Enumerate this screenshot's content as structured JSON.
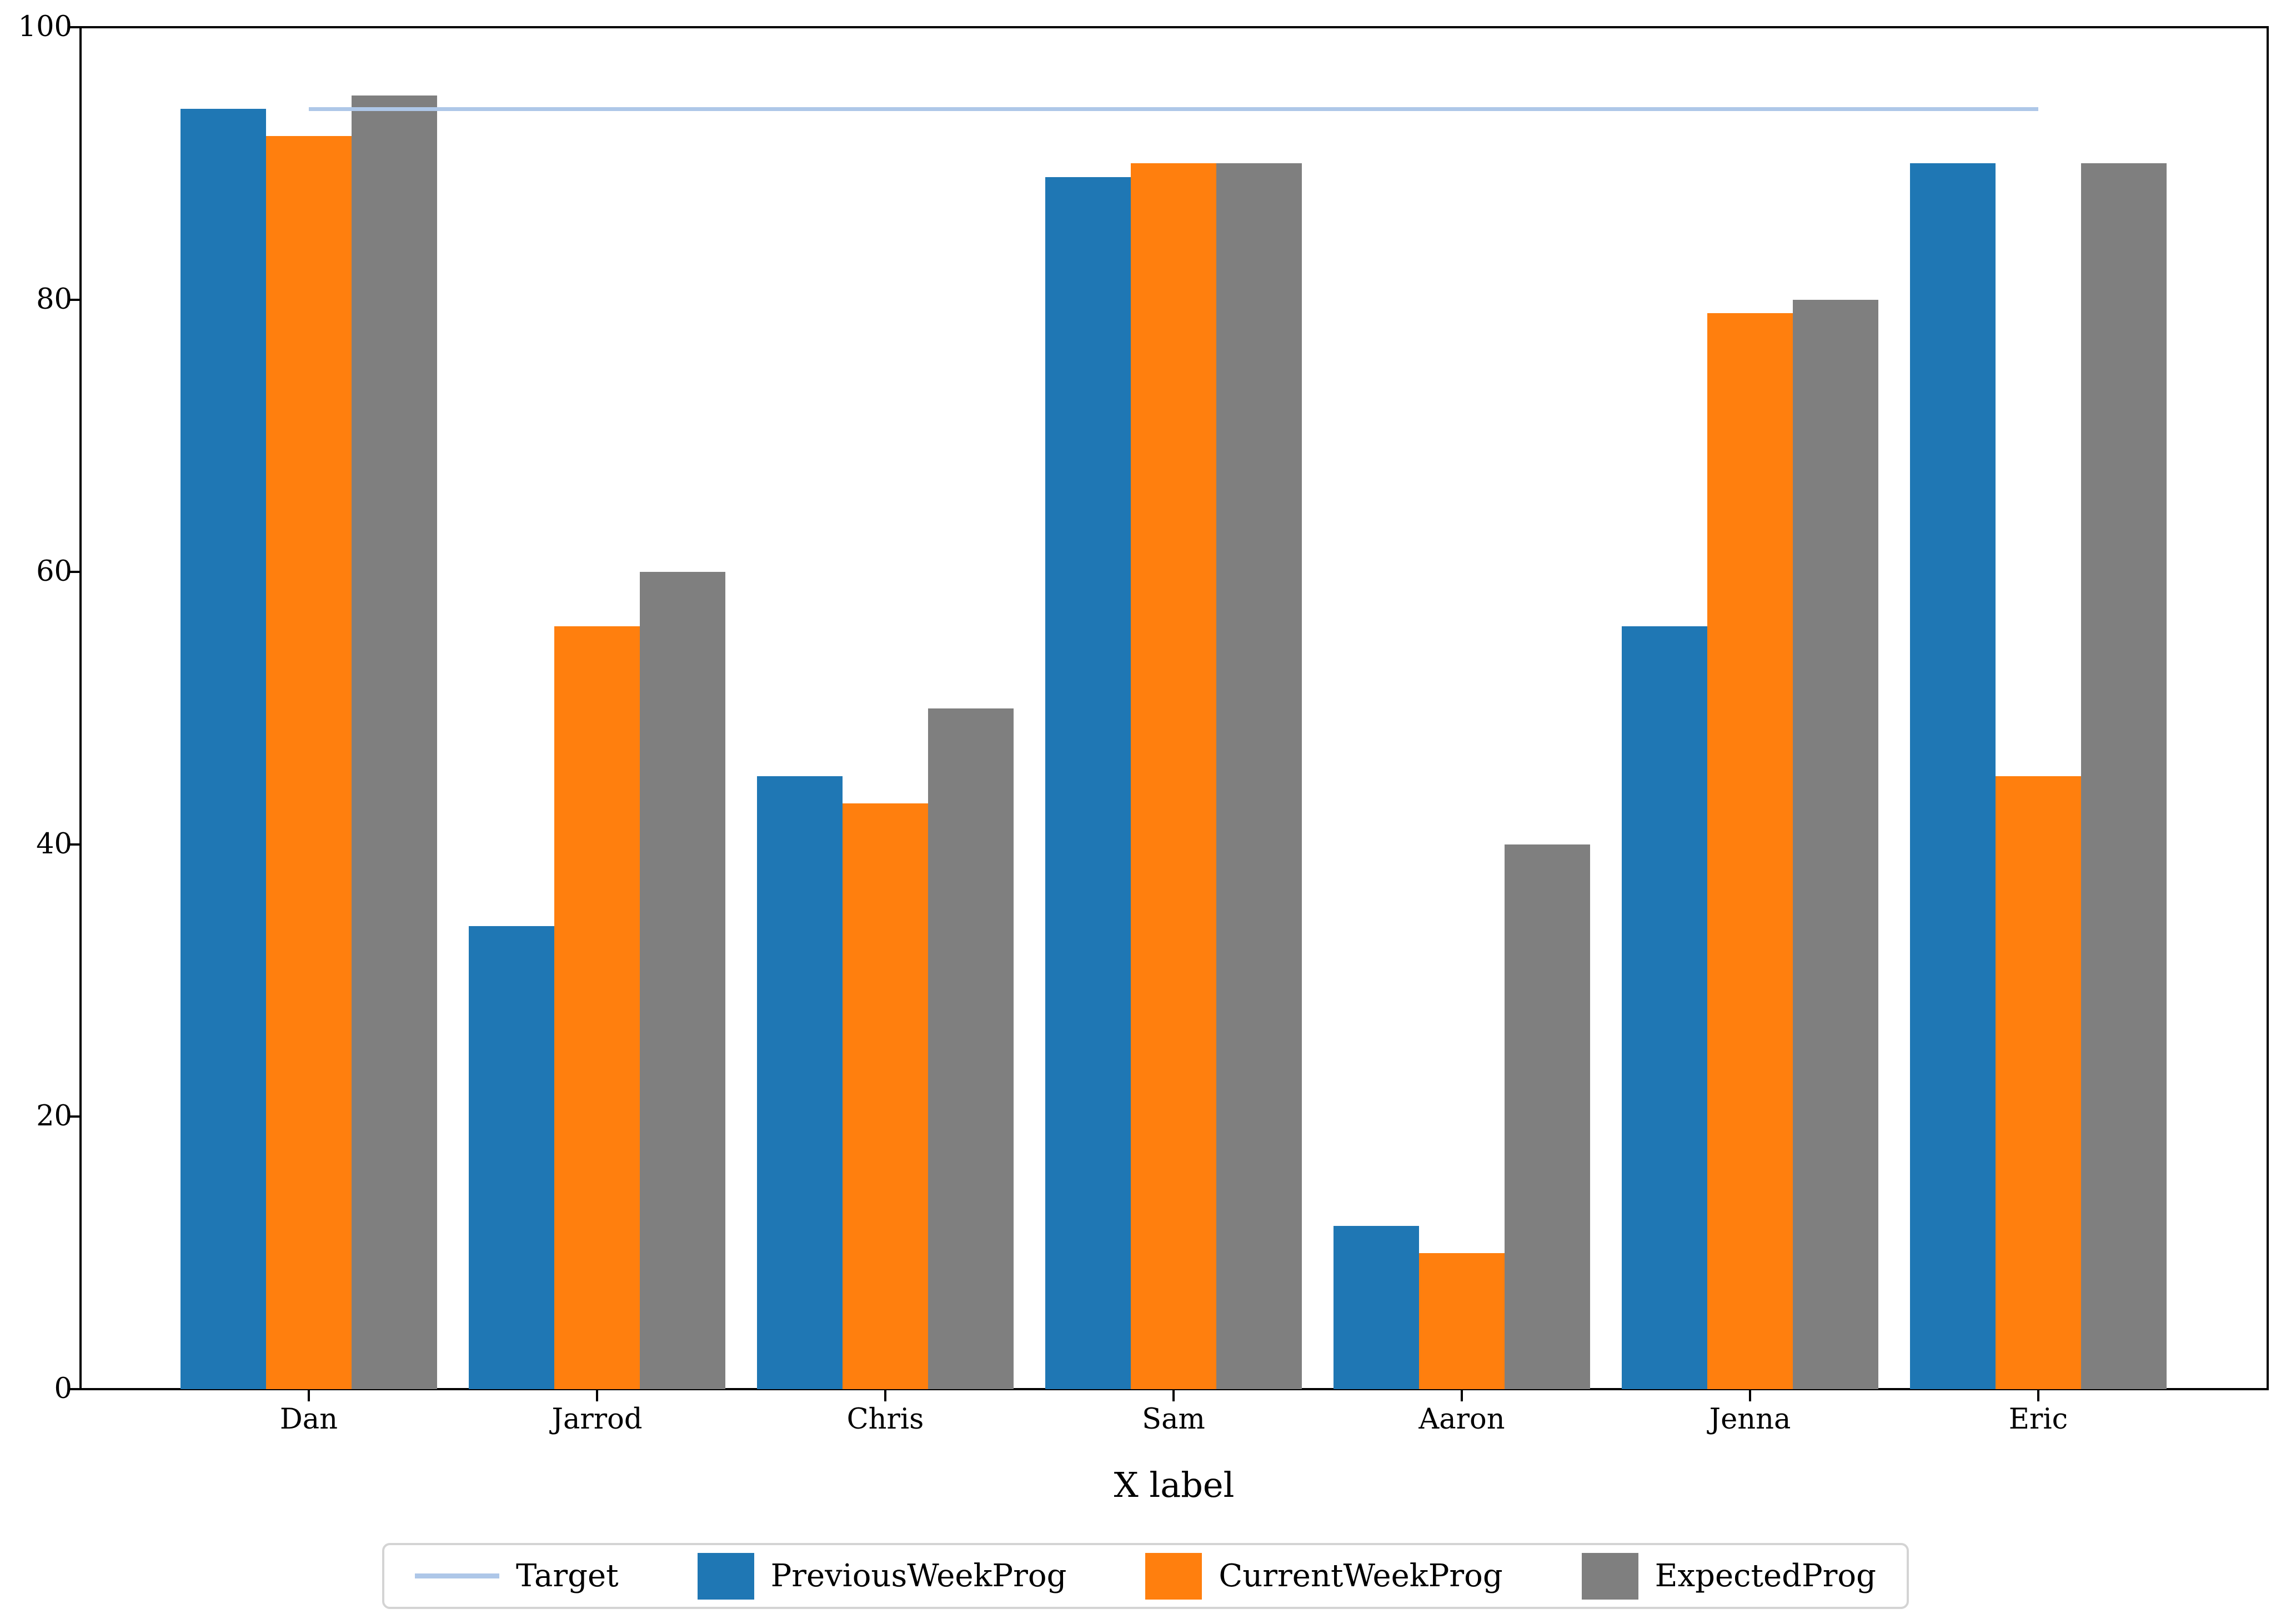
{
  "chart_data": {
    "type": "bar",
    "title": "",
    "xlabel": "X label",
    "ylabel": "",
    "categories": [
      "Dan",
      "Jarrod",
      "Chris",
      "Sam",
      "Aaron",
      "Jenna",
      "Eric"
    ],
    "series": [
      {
        "name": "PreviousWeekProg",
        "color": "#1f77b4",
        "values": [
          94,
          34,
          45,
          89,
          12,
          56,
          90
        ]
      },
      {
        "name": "CurrentWeekProg",
        "color": "#ff7f0e",
        "values": [
          92,
          56,
          43,
          90,
          10,
          79,
          45
        ]
      },
      {
        "name": "ExpectedProg",
        "color": "#7f7f7f",
        "values": [
          95,
          60,
          50,
          90,
          40,
          80,
          90
        ]
      }
    ],
    "target_line": {
      "label": "Target",
      "value": 94,
      "color": "#aec7e8",
      "x_start_category": "Dan",
      "x_end_category": "Eric"
    },
    "ylim": [
      0,
      100
    ],
    "yticks": [
      0,
      20,
      40,
      60,
      80,
      100
    ],
    "grid": false,
    "legend_position": "bottom",
    "legend_entries": [
      "Target",
      "PreviousWeekProg",
      "CurrentWeekProg",
      "ExpectedProg"
    ],
    "axis_color": "#000000",
    "background_color": "#ffffff"
  }
}
